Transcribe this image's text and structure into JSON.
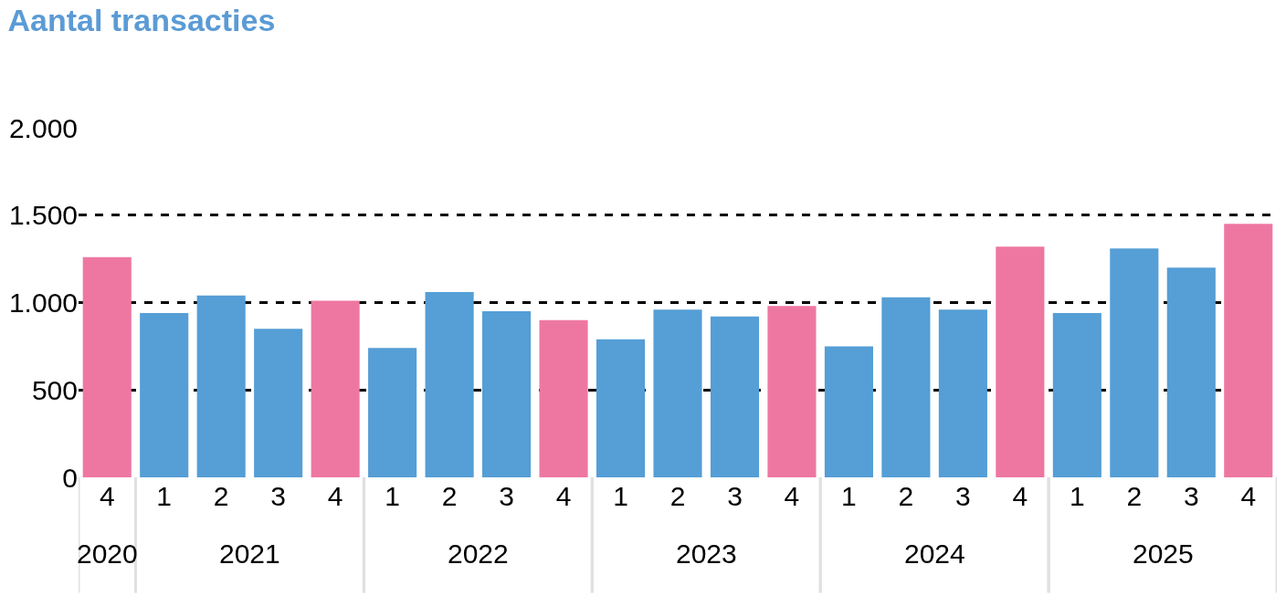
{
  "chart_data": {
    "type": "bar",
    "title": "Aantal transacties",
    "categories": [
      [
        "2020",
        "4"
      ],
      [
        "2021",
        "1"
      ],
      [
        null,
        "2"
      ],
      [
        null,
        "3"
      ],
      [
        null,
        "4"
      ],
      [
        "2022",
        "1"
      ],
      [
        null,
        "2"
      ],
      [
        null,
        "3"
      ],
      [
        null,
        "4"
      ],
      [
        "2023",
        "1"
      ],
      [
        null,
        "2"
      ],
      [
        null,
        "3"
      ],
      [
        null,
        "4"
      ],
      [
        "2024",
        "1"
      ],
      [
        null,
        "2"
      ],
      [
        null,
        "3"
      ],
      [
        null,
        "4"
      ],
      [
        "2025",
        "1"
      ],
      [
        null,
        "2"
      ],
      [
        null,
        "3"
      ],
      [
        null,
        "4"
      ]
    ],
    "values": [
      1260,
      940,
      1040,
      850,
      1010,
      740,
      1060,
      950,
      900,
      790,
      960,
      920,
      980,
      750,
      1030,
      960,
      1320,
      940,
      1310,
      1200,
      1450
    ],
    "colors": [
      "#ee77a2",
      "#559ed6",
      "#559ed6",
      "#559ed6",
      "#ee77a2",
      "#559ed6",
      "#559ed6",
      "#559ed6",
      "#ee77a2",
      "#559ed6",
      "#559ed6",
      "#559ed6",
      "#ee77a2",
      "#559ed6",
      "#559ed6",
      "#559ed6",
      "#ee77a2",
      "#559ed6",
      "#559ed6",
      "#559ed6",
      "#ee77a2"
    ],
    "ylim": [
      0,
      2000
    ],
    "yticks": [
      0,
      500,
      {
        "value": 1000,
        "label": "1.000"
      },
      {
        "value": 1500,
        "label": "1.500"
      },
      {
        "value": 2000,
        "label": "2.000"
      }
    ],
    "grid": "y",
    "line_style": "dashed"
  }
}
